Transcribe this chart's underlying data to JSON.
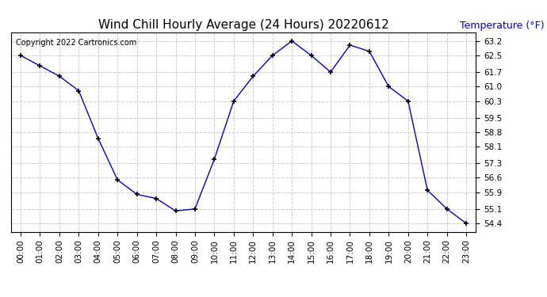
{
  "title": "Wind Chill Hourly Average (24 Hours) 20220612",
  "copyright": "Copyright 2022 Cartronics.com",
  "ylabel": "Temperature (°F)",
  "ylabel_color": "#0000cc",
  "line_color": "#0000cc",
  "marker": "+",
  "marker_color": "#000000",
  "background_color": "#ffffff",
  "grid_color": "#cccccc",
  "hours": [
    0,
    1,
    2,
    3,
    4,
    5,
    6,
    7,
    8,
    9,
    10,
    11,
    12,
    13,
    14,
    15,
    16,
    17,
    18,
    19,
    20,
    21,
    22,
    23
  ],
  "values": [
    62.5,
    62.0,
    61.5,
    60.8,
    58.5,
    56.5,
    55.8,
    55.6,
    55.0,
    55.1,
    57.5,
    60.3,
    61.5,
    62.5,
    63.2,
    62.5,
    61.7,
    63.0,
    62.7,
    61.0,
    60.3,
    56.0,
    55.1,
    54.4
  ],
  "ylim_min": 54.0,
  "ylim_max": 63.6,
  "yticks": [
    54.4,
    55.1,
    55.9,
    56.6,
    57.3,
    58.1,
    58.8,
    59.5,
    60.3,
    61.0,
    61.7,
    62.5,
    63.2
  ],
  "title_fontsize": 11,
  "copyright_fontsize": 7,
  "ylabel_fontsize": 9,
  "tick_fontsize": 7.5
}
